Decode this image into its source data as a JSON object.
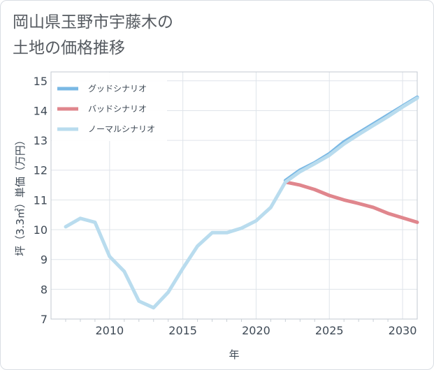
{
  "title_line1": "岡山県玉野市宇藤木の",
  "title_line2": "土地の価格推移",
  "chart_data": {
    "type": "line",
    "xlabel": "年",
    "ylabel": "坪（3.3㎡）単価（万円）",
    "xlim": [
      2006,
      2031
    ],
    "ylim": [
      7,
      15.3
    ],
    "x_ticks": [
      2010,
      2015,
      2020,
      2025,
      2030
    ],
    "y_ticks": [
      7,
      8,
      9,
      10,
      11,
      12,
      13,
      14,
      15
    ],
    "grid": true,
    "legend_position": "top-left",
    "series": [
      {
        "name": "グッドシナリオ",
        "color": "#7ab8e4",
        "x": [
          2022,
          2023,
          2024,
          2025,
          2026,
          2027,
          2028,
          2029,
          2030,
          2031
        ],
        "values": [
          11.65,
          12.0,
          12.25,
          12.55,
          12.95,
          13.25,
          13.55,
          13.85,
          14.15,
          14.45
        ]
      },
      {
        "name": "バッドシナリオ",
        "color": "#e0868d",
        "x": [
          2022,
          2023,
          2024,
          2025,
          2026,
          2027,
          2028,
          2029,
          2030,
          2031
        ],
        "values": [
          11.6,
          11.5,
          11.35,
          11.15,
          11.0,
          10.88,
          10.75,
          10.55,
          10.4,
          10.25
        ]
      },
      {
        "name": "ノーマルシナリオ",
        "color": "#b9dcee",
        "x": [
          2007,
          2008,
          2009,
          2010,
          2011,
          2012,
          2013,
          2014,
          2015,
          2016,
          2017,
          2018,
          2019,
          2020,
          2021,
          2022,
          2023,
          2024,
          2025,
          2026,
          2027,
          2028,
          2029,
          2030,
          2031
        ],
        "values": [
          10.1,
          10.38,
          10.25,
          9.1,
          8.6,
          7.6,
          7.38,
          7.9,
          8.7,
          9.45,
          9.9,
          9.9,
          10.05,
          10.3,
          10.75,
          11.6,
          11.95,
          12.22,
          12.5,
          12.88,
          13.2,
          13.5,
          13.8,
          14.12,
          14.42
        ]
      }
    ]
  }
}
